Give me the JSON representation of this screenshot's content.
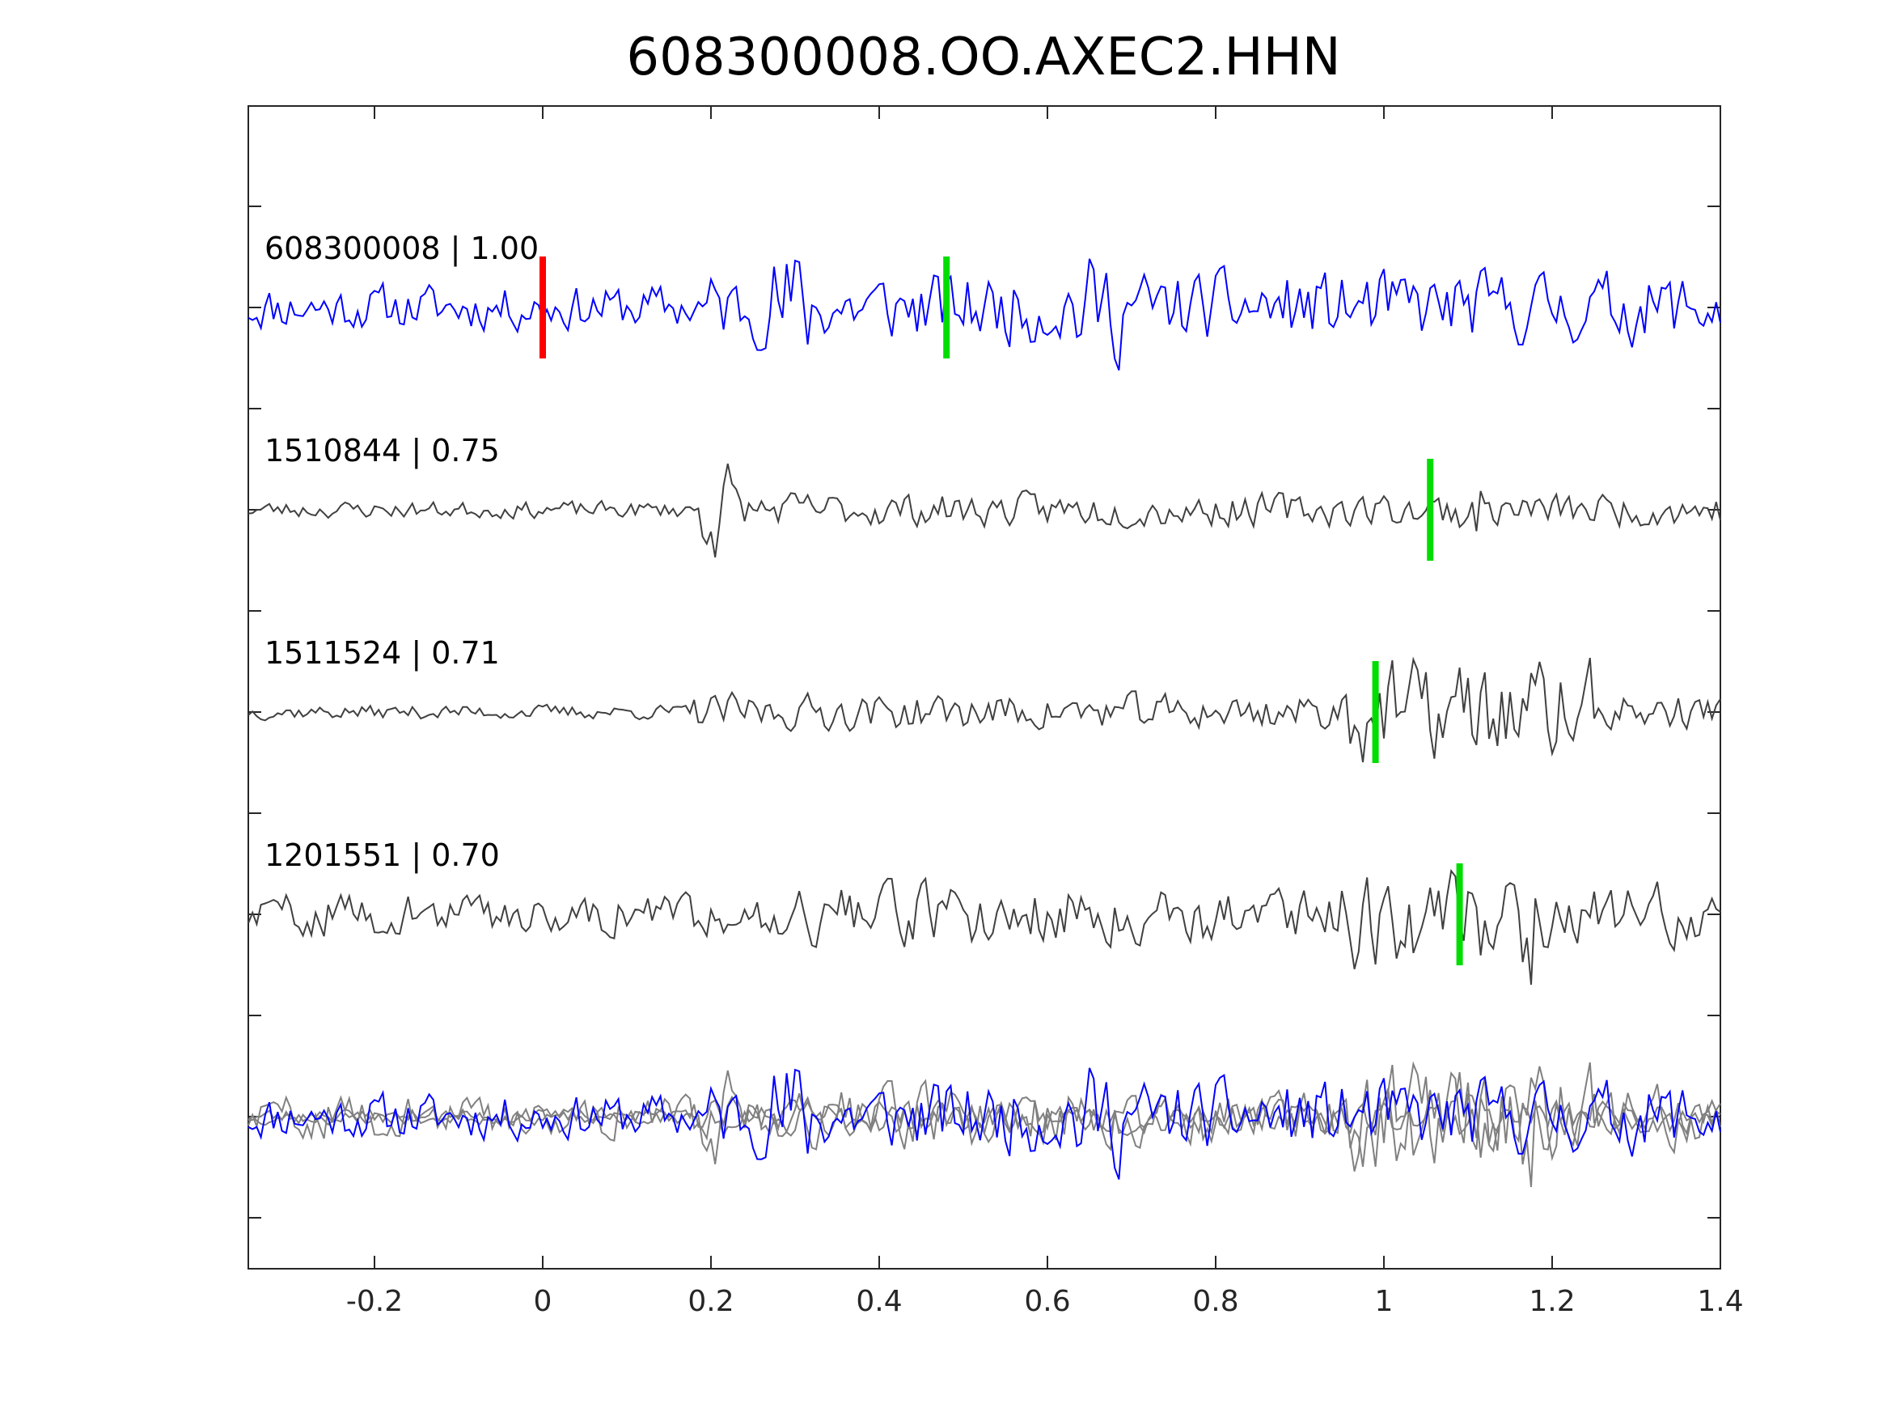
{
  "chart_data": {
    "type": "line",
    "title": "608300008.OO.AXEC2.HHN",
    "xlabel": "",
    "ylabel": "",
    "xlim": [
      -0.35,
      1.4
    ],
    "x_ticks": [
      -0.2,
      0,
      0.2,
      0.4,
      0.6,
      0.8,
      1,
      1.2,
      1.4
    ],
    "x_tick_labels": [
      "-0.2",
      "0",
      "0.2",
      "0.4",
      "0.6",
      "0.8",
      "1",
      "1.2",
      "1.4"
    ],
    "grid": false,
    "legend": "none",
    "traces": [
      {
        "label": "608300008 | 1.00",
        "color": "#0000ff",
        "markers": [
          {
            "time": 0.0,
            "color": "#ff0000"
          },
          {
            "time": 0.48,
            "color": "#00dd00"
          }
        ]
      },
      {
        "label": "1510844 | 0.75",
        "color": "#404040",
        "markers": [
          {
            "time": 1.055,
            "color": "#00dd00"
          }
        ]
      },
      {
        "label": "1511524 | 0.71",
        "color": "#404040",
        "markers": [
          {
            "time": 0.99,
            "color": "#00dd00"
          }
        ]
      },
      {
        "label": "1201551 | 0.70",
        "color": "#404040",
        "markers": [
          {
            "time": 1.09,
            "color": "#00dd00"
          }
        ]
      }
    ],
    "stack": {
      "description": "overlay of all traces",
      "colors": [
        "#0000ff",
        "#808080"
      ]
    }
  }
}
